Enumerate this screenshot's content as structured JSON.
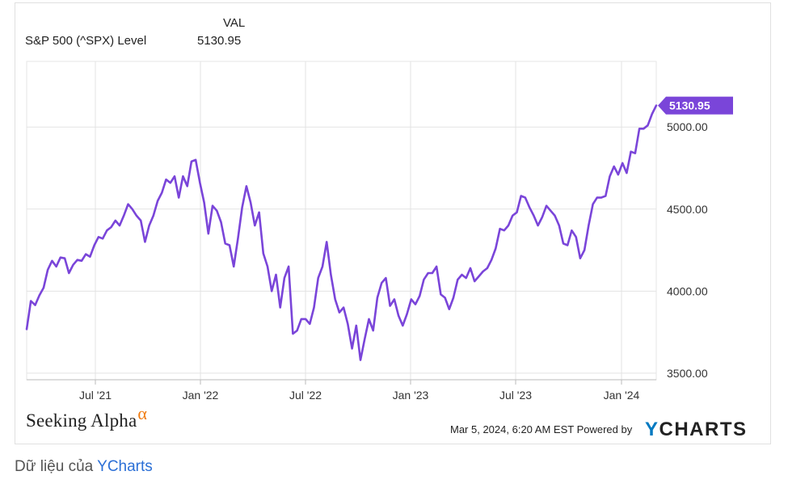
{
  "header": {
    "val_label": "VAL",
    "series_label": "S&P 500 (^SPX) Level",
    "series_value": "5130.95"
  },
  "footer": {
    "brand_text": "Seeking Alpha",
    "brand_alpha": "α",
    "timestamp": "Mar 5, 2024, 6:20 AM EST",
    "powered_by": "Powered by",
    "ycharts_y": "Y",
    "ycharts_rest": "CHARTS"
  },
  "caption": {
    "prefix": "Dữ liệu của",
    "link": "YCharts"
  },
  "colors": {
    "line": "#7a45d9",
    "badge": "#7a45d9",
    "grid": "#e3e3e3",
    "axis_text": "#333333"
  },
  "chart_data": {
    "type": "line",
    "title": "",
    "xlabel": "",
    "ylabel": "",
    "ylim": [
      3460,
      5400
    ],
    "yticks": [
      3500,
      4000,
      4500,
      5000
    ],
    "ytick_labels": [
      "3500.00",
      "4000.00",
      "4500.00",
      "5000.00"
    ],
    "xticks": [
      "Jul '21",
      "Jan '22",
      "Jul '22",
      "Jan '23",
      "Jul '23",
      "Jan '24"
    ],
    "last_value_label": "5130.95",
    "grid": true,
    "series": [
      {
        "name": "S&P 500 (^SPX) Level",
        "x_note": "weekly from Mar 2021",
        "values": [
          3768,
          3940,
          3915,
          3974,
          4020,
          4130,
          4185,
          4150,
          4205,
          4200,
          4110,
          4160,
          4190,
          4185,
          4225,
          4210,
          4280,
          4330,
          4320,
          4370,
          4390,
          4430,
          4400,
          4460,
          4530,
          4500,
          4460,
          4430,
          4300,
          4400,
          4460,
          4550,
          4600,
          4680,
          4660,
          4700,
          4570,
          4700,
          4640,
          4790,
          4800,
          4660,
          4540,
          4350,
          4520,
          4490,
          4420,
          4290,
          4280,
          4150,
          4320,
          4510,
          4640,
          4540,
          4400,
          4480,
          4230,
          4150,
          4000,
          4100,
          3900,
          4080,
          4150,
          3740,
          3760,
          3830,
          3830,
          3800,
          3900,
          4080,
          4150,
          4300,
          4100,
          3950,
          3870,
          3900,
          3800,
          3650,
          3790,
          3580,
          3710,
          3830,
          3760,
          3960,
          4050,
          4080,
          3910,
          3950,
          3850,
          3790,
          3860,
          3950,
          3920,
          3970,
          4070,
          4110,
          4110,
          4150,
          3980,
          3960,
          3890,
          3960,
          4070,
          4100,
          4080,
          4140,
          4060,
          4090,
          4120,
          4140,
          4190,
          4260,
          4380,
          4370,
          4400,
          4460,
          4480,
          4580,
          4570,
          4510,
          4460,
          4400,
          4450,
          4520,
          4490,
          4460,
          4400,
          4290,
          4280,
          4370,
          4330,
          4200,
          4250,
          4400,
          4530,
          4570,
          4570,
          4580,
          4700,
          4760,
          4710,
          4780,
          4720,
          4850,
          4840,
          4990,
          4990,
          5010,
          5080,
          5130.95
        ]
      }
    ]
  }
}
